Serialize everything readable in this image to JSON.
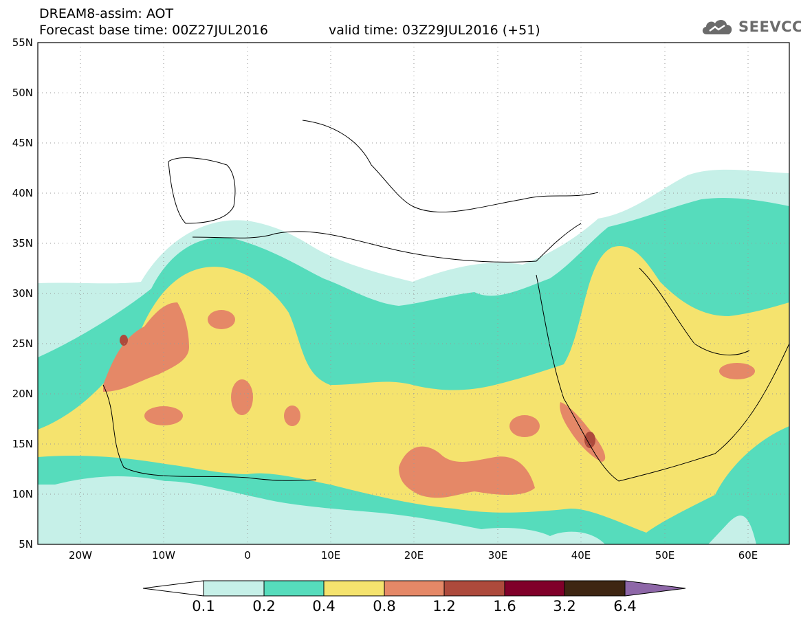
{
  "header": {
    "line1": "DREAM8-assim: AOT",
    "line2": "Forecast base time: 00Z27JUL2016",
    "valid": "valid time: 03Z29JUL2016 (+51)"
  },
  "brand": {
    "name": "SEEVCCC",
    "icon": "cloud-icon"
  },
  "map": {
    "lon_range": [
      -25,
      65
    ],
    "lat_range": [
      5,
      55
    ],
    "lat_labels": [
      "5N",
      "10N",
      "15N",
      "20N",
      "25N",
      "30N",
      "35N",
      "40N",
      "45N",
      "50N",
      "55N"
    ],
    "lon_labels": [
      "20W",
      "10W",
      "0",
      "10E",
      "20E",
      "30E",
      "40E",
      "50E",
      "60E"
    ],
    "grid": "dotted"
  },
  "colorbar": {
    "labels": [
      "0.1",
      "0.2",
      "0.4",
      "0.8",
      "1.2",
      "1.6",
      "3.2",
      "6.4"
    ],
    "colors": [
      "#ffffff",
      "#c6f0e8",
      "#56dcbc",
      "#f5e36e",
      "#e58867",
      "#ad4a3c",
      "#80002a",
      "#3e2612",
      "#8e67a8"
    ]
  }
}
